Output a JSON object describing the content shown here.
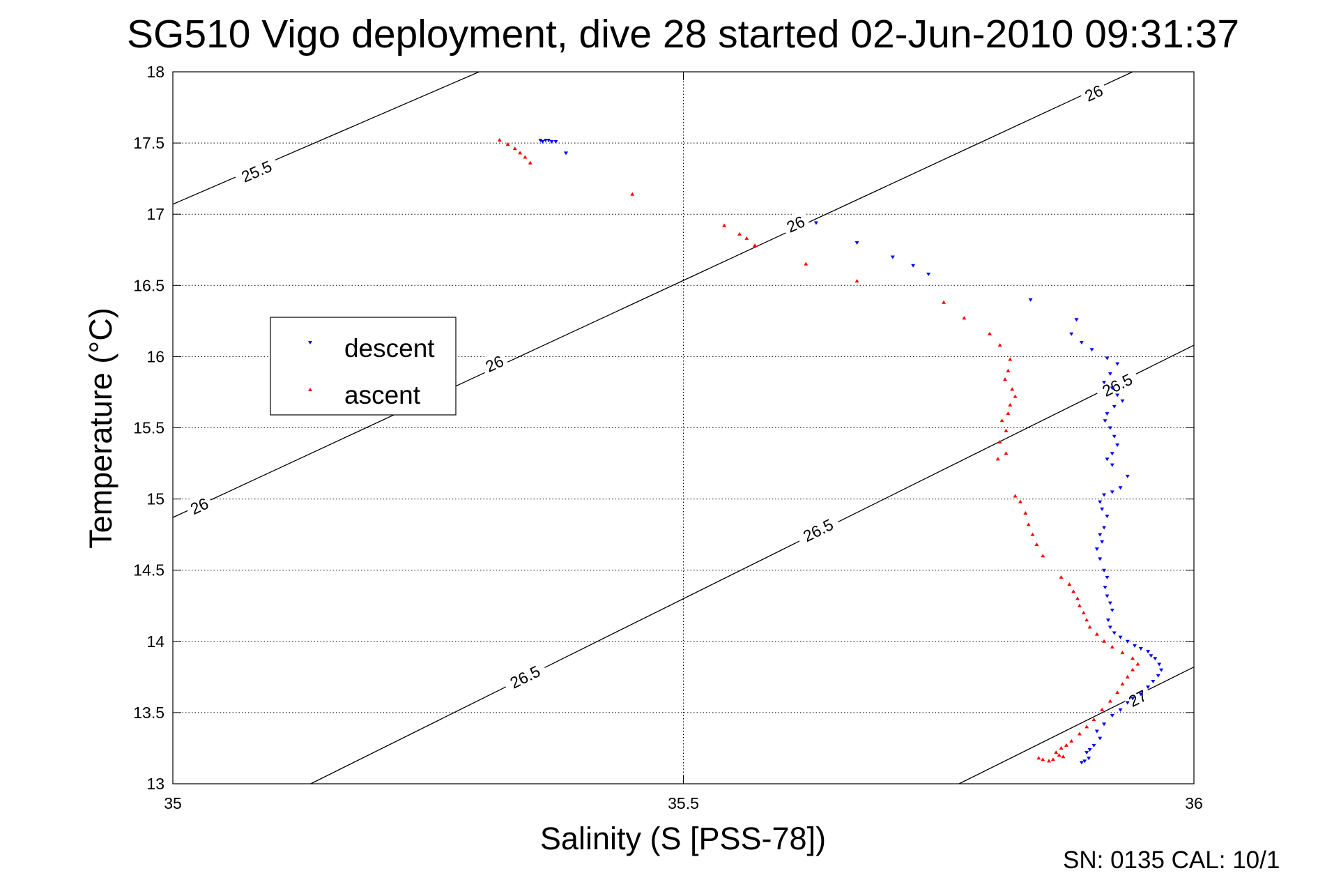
{
  "chart_data": {
    "type": "scatter",
    "title": "SG510 Vigo deployment, dive 28 started 02-Jun-2010 09:31:37",
    "xlabel": "Salinity (S [PSS-78])",
    "ylabel": "Temperature (°C)",
    "xlim": [
      35,
      36
    ],
    "ylim": [
      13,
      18
    ],
    "x_ticks": [
      "35",
      "35.5",
      "36"
    ],
    "y_ticks": [
      "13",
      "13.5",
      "14",
      "14.5",
      "15",
      "15.5",
      "16",
      "16.5",
      "17",
      "17.5",
      "18"
    ],
    "grid": true,
    "legend_position": "middle-left",
    "footer_text": "SN: 0135  CAL: 10/1",
    "series": [
      {
        "name": "descent",
        "color": "#0000ff",
        "marker": "triangle-down",
        "points": [
          [
            35.36,
            17.52
          ],
          [
            35.362,
            17.51
          ],
          [
            35.365,
            17.52
          ],
          [
            35.368,
            17.52
          ],
          [
            35.371,
            17.51
          ],
          [
            35.375,
            17.51
          ],
          [
            35.385,
            17.43
          ],
          [
            35.63,
            16.94
          ],
          [
            35.67,
            16.8
          ],
          [
            35.705,
            16.7
          ],
          [
            35.725,
            16.64
          ],
          [
            35.74,
            16.58
          ],
          [
            35.84,
            16.4
          ],
          [
            35.885,
            16.26
          ],
          [
            35.88,
            16.16
          ],
          [
            35.89,
            16.1
          ],
          [
            35.9,
            16.05
          ],
          [
            35.915,
            15.99
          ],
          [
            35.925,
            15.95
          ],
          [
            35.918,
            15.88
          ],
          [
            35.912,
            15.82
          ],
          [
            35.92,
            15.78
          ],
          [
            35.925,
            15.73
          ],
          [
            35.93,
            15.69
          ],
          [
            35.922,
            15.65
          ],
          [
            35.915,
            15.6
          ],
          [
            35.913,
            15.55
          ],
          [
            35.918,
            15.5
          ],
          [
            35.922,
            15.44
          ],
          [
            35.925,
            15.38
          ],
          [
            35.92,
            15.32
          ],
          [
            35.915,
            15.28
          ],
          [
            35.92,
            15.24
          ],
          [
            35.935,
            15.16
          ],
          [
            35.928,
            15.08
          ],
          [
            35.92,
            15.05
          ],
          [
            35.912,
            15.03
          ],
          [
            35.908,
            14.98
          ],
          [
            35.91,
            14.93
          ],
          [
            35.915,
            14.88
          ],
          [
            35.912,
            14.8
          ],
          [
            35.908,
            14.75
          ],
          [
            35.91,
            14.7
          ],
          [
            35.905,
            14.65
          ],
          [
            35.908,
            14.58
          ],
          [
            35.912,
            14.5
          ],
          [
            35.915,
            14.45
          ],
          [
            35.913,
            14.38
          ],
          [
            35.915,
            14.32
          ],
          [
            35.918,
            14.27
          ],
          [
            35.92,
            14.22
          ],
          [
            35.916,
            14.15
          ],
          [
            35.918,
            14.1
          ],
          [
            35.922,
            14.06
          ],
          [
            35.928,
            14.03
          ],
          [
            35.935,
            14.0
          ],
          [
            35.942,
            13.97
          ],
          [
            35.948,
            13.95
          ],
          [
            35.955,
            13.93
          ],
          [
            35.958,
            13.9
          ],
          [
            35.962,
            13.88
          ],
          [
            35.966,
            13.84
          ],
          [
            35.968,
            13.8
          ],
          [
            35.965,
            13.76
          ],
          [
            35.96,
            13.72
          ],
          [
            35.955,
            13.68
          ],
          [
            35.948,
            13.63
          ],
          [
            35.94,
            13.6
          ],
          [
            35.935,
            13.57
          ],
          [
            35.928,
            13.52
          ],
          [
            35.92,
            13.48
          ],
          [
            35.912,
            13.42
          ],
          [
            35.905,
            13.37
          ],
          [
            35.908,
            13.32
          ],
          [
            35.902,
            13.27
          ],
          [
            35.898,
            13.24
          ],
          [
            35.895,
            13.22
          ],
          [
            35.897,
            13.18
          ],
          [
            35.893,
            13.16
          ],
          [
            35.89,
            13.15
          ]
        ]
      },
      {
        "name": "ascent",
        "color": "#ff0000",
        "marker": "triangle-up",
        "points": [
          [
            35.32,
            17.52
          ],
          [
            35.328,
            17.49
          ],
          [
            35.335,
            17.46
          ],
          [
            35.34,
            17.43
          ],
          [
            35.345,
            17.4
          ],
          [
            35.35,
            17.36
          ],
          [
            35.45,
            17.14
          ],
          [
            35.54,
            16.92
          ],
          [
            35.555,
            16.86
          ],
          [
            35.562,
            16.83
          ],
          [
            35.57,
            16.78
          ],
          [
            35.62,
            16.65
          ],
          [
            35.67,
            16.53
          ],
          [
            35.755,
            16.38
          ],
          [
            35.775,
            16.27
          ],
          [
            35.8,
            16.16
          ],
          [
            35.81,
            16.08
          ],
          [
            35.82,
            15.98
          ],
          [
            35.818,
            15.9
          ],
          [
            35.815,
            15.84
          ],
          [
            35.822,
            15.77
          ],
          [
            35.825,
            15.72
          ],
          [
            35.82,
            15.66
          ],
          [
            35.818,
            15.6
          ],
          [
            35.812,
            15.55
          ],
          [
            35.816,
            15.48
          ],
          [
            35.81,
            15.4
          ],
          [
            35.816,
            15.32
          ],
          [
            35.808,
            15.28
          ],
          [
            35.825,
            15.02
          ],
          [
            35.83,
            14.98
          ],
          [
            35.835,
            14.9
          ],
          [
            35.838,
            14.82
          ],
          [
            35.842,
            14.75
          ],
          [
            35.846,
            14.68
          ],
          [
            35.852,
            14.6
          ],
          [
            35.87,
            14.45
          ],
          [
            35.878,
            14.4
          ],
          [
            35.882,
            14.35
          ],
          [
            35.886,
            14.3
          ],
          [
            35.888,
            14.25
          ],
          [
            35.892,
            14.2
          ],
          [
            35.895,
            14.15
          ],
          [
            35.898,
            14.1
          ],
          [
            35.905,
            14.05
          ],
          [
            35.912,
            14.0
          ],
          [
            35.92,
            13.96
          ],
          [
            35.93,
            13.92
          ],
          [
            35.94,
            13.88
          ],
          [
            35.945,
            13.84
          ],
          [
            35.94,
            13.8
          ],
          [
            35.935,
            13.75
          ],
          [
            35.93,
            13.7
          ],
          [
            35.925,
            13.64
          ],
          [
            35.918,
            13.58
          ],
          [
            35.91,
            13.52
          ],
          [
            35.902,
            13.45
          ],
          [
            35.895,
            13.4
          ],
          [
            35.888,
            13.35
          ],
          [
            35.88,
            13.3
          ],
          [
            35.875,
            13.27
          ],
          [
            35.87,
            13.25
          ],
          [
            35.865,
            13.22
          ],
          [
            35.868,
            13.2
          ],
          [
            35.872,
            13.19
          ],
          [
            35.862,
            13.17
          ],
          [
            35.858,
            13.16
          ],
          [
            35.852,
            13.17
          ],
          [
            35.848,
            13.18
          ]
        ]
      }
    ],
    "density_contours": [
      {
        "label": "25.5",
        "from": [
          35.0,
          17.07
        ],
        "to": [
          35.3,
          18.0
        ]
      },
      {
        "label": "26",
        "from": [
          35.0,
          14.87
        ],
        "to": [
          35.94,
          18.0
        ]
      },
      {
        "label": "26.5",
        "from": [
          35.135,
          13.0
        ],
        "to": [
          36.0,
          16.08
        ]
      },
      {
        "label": "27",
        "from": [
          35.77,
          13.0
        ],
        "to": [
          36.0,
          13.82
        ]
      }
    ],
    "contour_labels": [
      {
        "text": "25.5",
        "x": 35.082,
        "y": 17.3
      },
      {
        "text": "26",
        "x": 35.902,
        "y": 17.85
      },
      {
        "text": "26",
        "x": 35.61,
        "y": 16.93
      },
      {
        "text": "26",
        "x": 35.315,
        "y": 15.95
      },
      {
        "text": "26",
        "x": 35.026,
        "y": 14.95
      },
      {
        "text": "26.5",
        "x": 35.925,
        "y": 15.8
      },
      {
        "text": "26.5",
        "x": 35.632,
        "y": 14.78
      },
      {
        "text": "26.5",
        "x": 35.345,
        "y": 13.75
      },
      {
        "text": "27",
        "x": 35.945,
        "y": 13.6
      }
    ]
  }
}
